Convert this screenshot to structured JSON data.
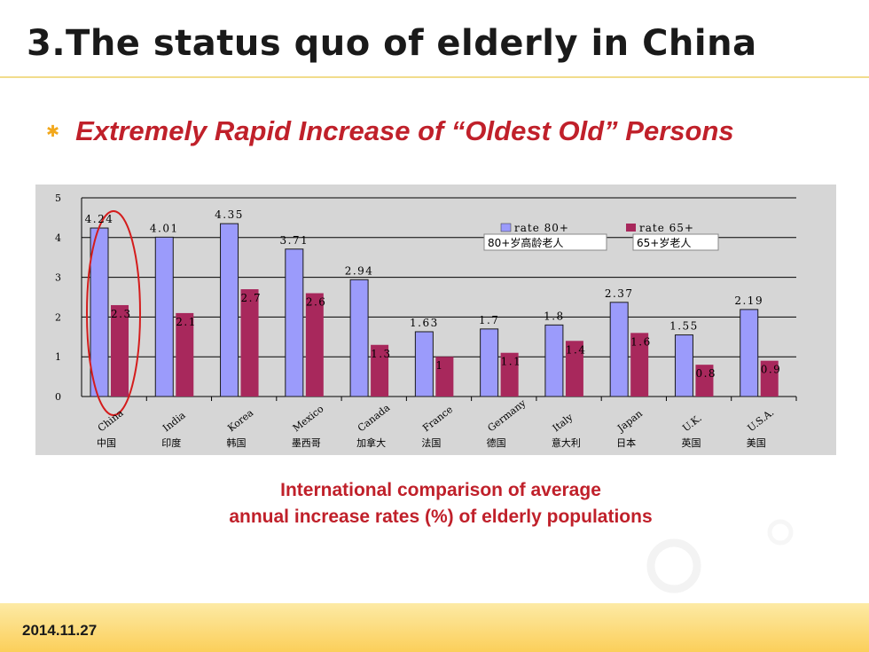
{
  "slide": {
    "title": "3.The status quo of elderly in China",
    "subtitle": "Extremely Rapid Increase of “Oldest Old” Persons",
    "caption_line1": "International comparison of average",
    "caption_line2": "annual increase rates (%) of elderly populations",
    "date": "2014.11.27"
  },
  "colors": {
    "title": "#1a1a1a",
    "accent_red": "#c0202a",
    "bullet": "#f2a81c",
    "chart_bg": "#d6d6d6",
    "bar_80": "#9b9bfb",
    "bar_65": "#a8285c",
    "highlight": "#d41c1c"
  },
  "chart_data": {
    "type": "bar",
    "categories": [
      "China",
      "India",
      "Korea",
      "Mexico",
      "Canada",
      "France",
      "Germany",
      "Italy",
      "Japan",
      "U.K.",
      "U.S.A."
    ],
    "categories_cn": [
      "中国",
      "印度",
      "韩国",
      "墨西哥",
      "加拿大",
      "法国",
      "德国",
      "意大利",
      "日本",
      "英国",
      "美国"
    ],
    "series": [
      {
        "name": "rate 80+",
        "name_cn": "80+岁高龄老人",
        "values": [
          4.24,
          4.01,
          4.35,
          3.71,
          2.94,
          1.63,
          1.7,
          1.8,
          2.37,
          1.55,
          2.19
        ],
        "labels": [
          "4.24",
          "4.01",
          "4.35",
          "3.71",
          "2.94",
          "1.63",
          "1.7",
          "1.8",
          "2.37",
          "1.55",
          "2.19"
        ]
      },
      {
        "name": "rate 65+",
        "name_cn": "65+岁老人",
        "values": [
          2.3,
          2.1,
          2.7,
          2.6,
          1.3,
          1,
          1.1,
          1.4,
          1.6,
          0.8,
          0.9
        ],
        "labels": [
          "2.3",
          "2.1",
          "2.7",
          "2.6",
          "1.3",
          "1",
          "1.1",
          "1.4",
          "1.6",
          "0.8",
          "0.9"
        ]
      }
    ],
    "ylim": [
      0,
      5
    ],
    "yticks": [
      "0",
      "1",
      "2",
      "3",
      "4",
      "5"
    ],
    "grid": true,
    "legend": "top-right",
    "highlighted_category": "China"
  }
}
